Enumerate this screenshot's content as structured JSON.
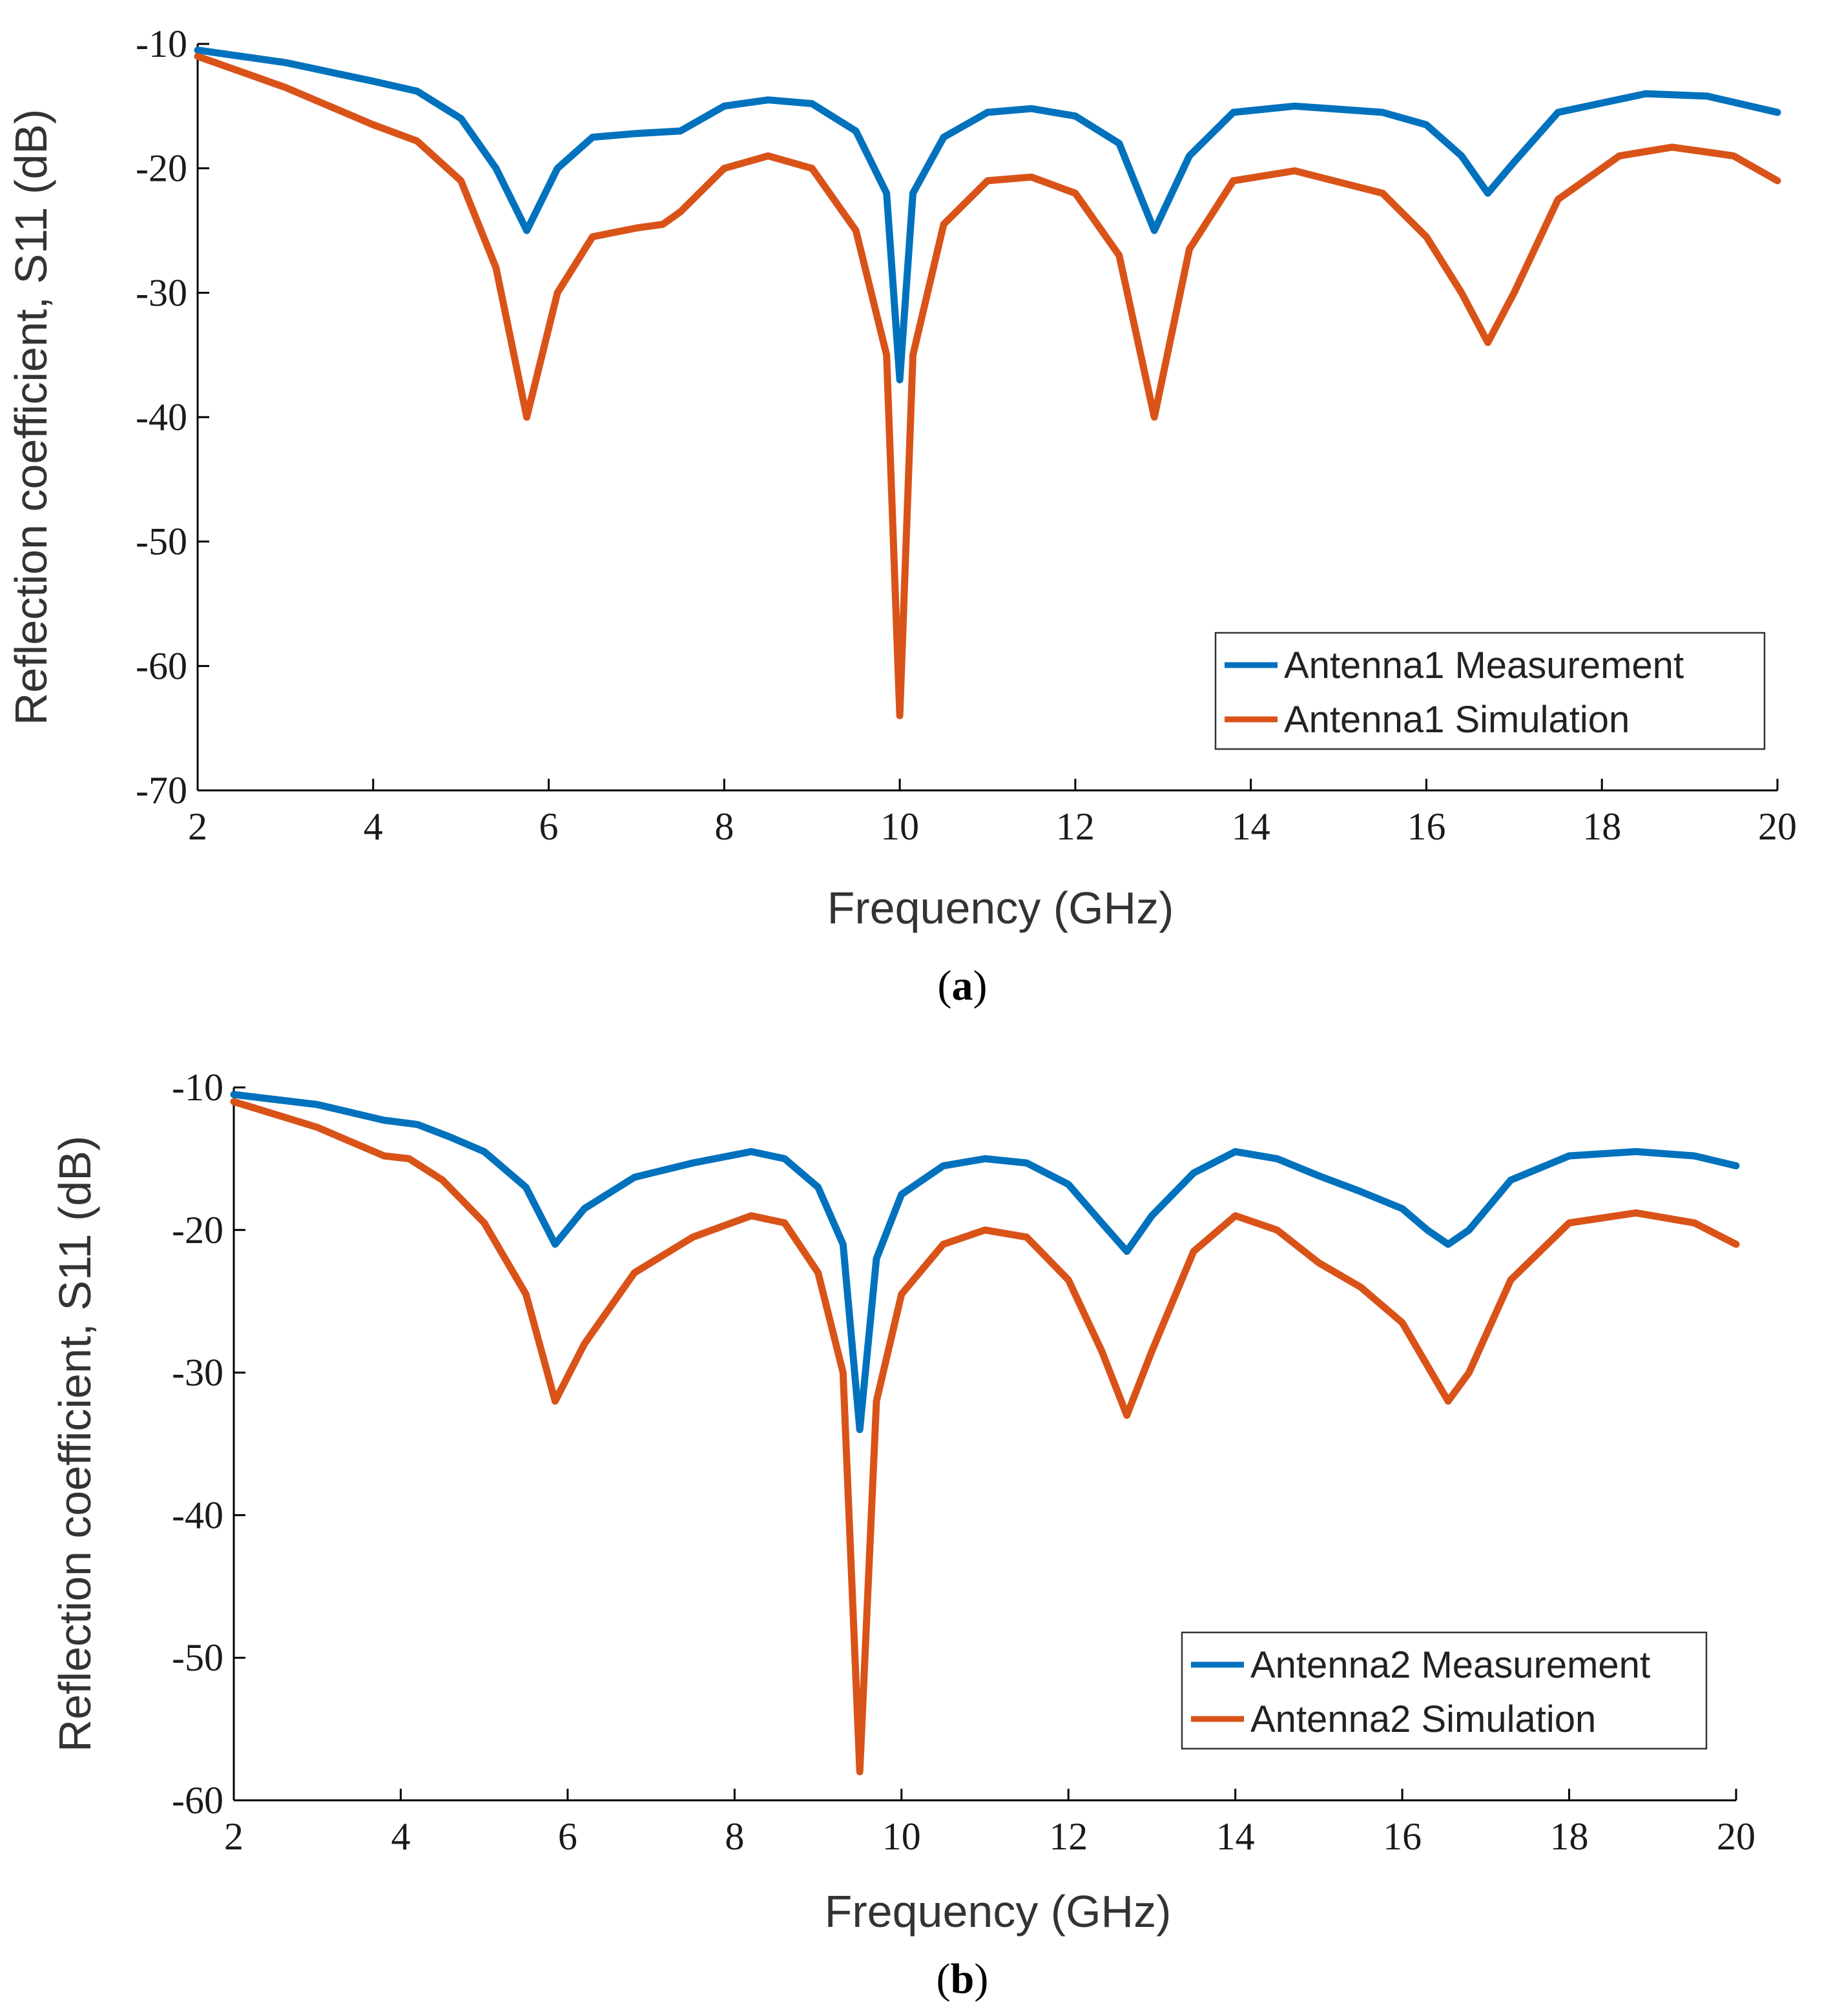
{
  "chart_data": [
    {
      "type": "line",
      "panel": "a",
      "caption": {
        "open": "(",
        "letter": "a",
        "close": ")"
      },
      "xlabel": "Frequency (GHz)",
      "ylabel": "Reflection coefficient, S11 (dB)",
      "xlim": [
        2,
        20
      ],
      "ylim": [
        -70,
        -10
      ],
      "xticks": [
        "2",
        "4",
        "6",
        "8",
        "10",
        "12",
        "14",
        "16",
        "18",
        "20"
      ],
      "xtick_values": [
        2,
        4,
        6,
        8,
        10,
        12,
        14,
        16,
        18,
        20
      ],
      "yticks": [
        "-10",
        "-20",
        "-30",
        "-40",
        "-50",
        "-60",
        "-70"
      ],
      "ytick_values": [
        -10,
        -20,
        -30,
        -40,
        -50,
        -60,
        -70
      ],
      "legend_position": "bottom-right",
      "series": [
        {
          "name": "Antenna1 Measurement",
          "color": "#0072BD",
          "points": [
            [
              2,
              -10.5
            ],
            [
              3,
              -11.5
            ],
            [
              4,
              -13.0
            ],
            [
              4.5,
              -13.8
            ],
            [
              5,
              -16.0
            ],
            [
              5.4,
              -20.0
            ],
            [
              5.75,
              -25.0
            ],
            [
              6.1,
              -20.0
            ],
            [
              6.5,
              -17.5
            ],
            [
              7.0,
              -17.2
            ],
            [
              7.5,
              -17.0
            ],
            [
              8,
              -15.0
            ],
            [
              8.5,
              -14.5
            ],
            [
              9,
              -14.8
            ],
            [
              9.5,
              -17.0
            ],
            [
              9.85,
              -22.0
            ],
            [
              10.0,
              -37.0
            ],
            [
              10.15,
              -22.0
            ],
            [
              10.5,
              -17.5
            ],
            [
              11,
              -15.5
            ],
            [
              11.5,
              -15.2
            ],
            [
              12,
              -15.8
            ],
            [
              12.5,
              -18.0
            ],
            [
              12.9,
              -25.0
            ],
            [
              13.3,
              -19.0
            ],
            [
              13.8,
              -15.5
            ],
            [
              14.5,
              -15.0
            ],
            [
              15.5,
              -15.5
            ],
            [
              16,
              -16.5
            ],
            [
              16.4,
              -19.0
            ],
            [
              16.7,
              -22.0
            ],
            [
              17.0,
              -19.5
            ],
            [
              17.5,
              -15.5
            ],
            [
              18.5,
              -14.0
            ],
            [
              19.2,
              -14.2
            ],
            [
              20,
              -15.5
            ]
          ]
        },
        {
          "name": "Antenna1 Simulation",
          "color": "#D95319",
          "points": [
            [
              2,
              -11.0
            ],
            [
              3,
              -13.5
            ],
            [
              4,
              -16.5
            ],
            [
              4.5,
              -17.8
            ],
            [
              5,
              -21.0
            ],
            [
              5.4,
              -28.0
            ],
            [
              5.75,
              -40.0
            ],
            [
              6.1,
              -30.0
            ],
            [
              6.5,
              -25.5
            ],
            [
              7.0,
              -24.8
            ],
            [
              7.3,
              -24.5
            ],
            [
              7.5,
              -23.5
            ],
            [
              8,
              -20.0
            ],
            [
              8.5,
              -19.0
            ],
            [
              9,
              -20.0
            ],
            [
              9.5,
              -25.0
            ],
            [
              9.85,
              -35.0
            ],
            [
              10.0,
              -64.0
            ],
            [
              10.15,
              -35.0
            ],
            [
              10.5,
              -24.5
            ],
            [
              11,
              -21.0
            ],
            [
              11.5,
              -20.7
            ],
            [
              12,
              -22.0
            ],
            [
              12.5,
              -27.0
            ],
            [
              12.9,
              -40.0
            ],
            [
              13.3,
              -26.5
            ],
            [
              13.8,
              -21.0
            ],
            [
              14.5,
              -20.2
            ],
            [
              15.5,
              -22.0
            ],
            [
              16,
              -25.5
            ],
            [
              16.4,
              -30.0
            ],
            [
              16.7,
              -34.0
            ],
            [
              17.0,
              -30.0
            ],
            [
              17.5,
              -22.5
            ],
            [
              18.2,
              -19.0
            ],
            [
              18.8,
              -18.3
            ],
            [
              19.5,
              -19.0
            ],
            [
              20,
              -21.0
            ]
          ]
        }
      ]
    },
    {
      "type": "line",
      "panel": "b",
      "caption": {
        "open": "(",
        "letter": "b",
        "close": ")"
      },
      "xlabel": "Frequency (GHz)",
      "ylabel": "Reflection coefficient, S11 (dB)",
      "xlim": [
        2,
        20
      ],
      "ylim": [
        -60,
        -10
      ],
      "xticks": [
        "2",
        "4",
        "6",
        "8",
        "10",
        "12",
        "14",
        "16",
        "18",
        "20"
      ],
      "xtick_values": [
        2,
        4,
        6,
        8,
        10,
        12,
        14,
        16,
        18,
        20
      ],
      "yticks": [
        "-10",
        "-20",
        "-30",
        "-40",
        "-50",
        "-60"
      ],
      "ytick_values": [
        -10,
        -20,
        -30,
        -40,
        -50,
        -60
      ],
      "legend_position": "bottom-right",
      "series": [
        {
          "name": "Antenna2 Measurement",
          "color": "#0072BD",
          "points": [
            [
              2,
              -10.5
            ],
            [
              3,
              -11.2
            ],
            [
              3.8,
              -12.3
            ],
            [
              4.2,
              -12.6
            ],
            [
              4.6,
              -13.5
            ],
            [
              5,
              -14.5
            ],
            [
              5.5,
              -17.0
            ],
            [
              5.85,
              -21.0
            ],
            [
              6.2,
              -18.5
            ],
            [
              6.8,
              -16.3
            ],
            [
              7.5,
              -15.3
            ],
            [
              8.2,
              -14.5
            ],
            [
              8.6,
              -15.0
            ],
            [
              9.0,
              -17.0
            ],
            [
              9.3,
              -21.0
            ],
            [
              9.5,
              -34.0
            ],
            [
              9.7,
              -22.0
            ],
            [
              10.0,
              -17.5
            ],
            [
              10.5,
              -15.5
            ],
            [
              11,
              -15.0
            ],
            [
              11.5,
              -15.3
            ],
            [
              12,
              -16.8
            ],
            [
              12.4,
              -19.5
            ],
            [
              12.7,
              -21.5
            ],
            [
              13.0,
              -19.0
            ],
            [
              13.5,
              -16.0
            ],
            [
              14.0,
              -14.5
            ],
            [
              14.5,
              -15.0
            ],
            [
              15,
              -16.2
            ],
            [
              15.5,
              -17.3
            ],
            [
              16,
              -18.5
            ],
            [
              16.3,
              -20.0
            ],
            [
              16.55,
              -21.0
            ],
            [
              16.8,
              -20.0
            ],
            [
              17.3,
              -16.5
            ],
            [
              18,
              -14.8
            ],
            [
              18.8,
              -14.5
            ],
            [
              19.5,
              -14.8
            ],
            [
              20,
              -15.5
            ]
          ]
        },
        {
          "name": "Antenna2 Simulation",
          "color": "#D95319",
          "points": [
            [
              2,
              -11.0
            ],
            [
              3,
              -12.8
            ],
            [
              3.8,
              -14.8
            ],
            [
              4.1,
              -15.0
            ],
            [
              4.5,
              -16.5
            ],
            [
              5,
              -19.5
            ],
            [
              5.5,
              -24.5
            ],
            [
              5.85,
              -32.0
            ],
            [
              6.2,
              -28.0
            ],
            [
              6.8,
              -23.0
            ],
            [
              7.5,
              -20.5
            ],
            [
              8.2,
              -19.0
            ],
            [
              8.6,
              -19.5
            ],
            [
              9.0,
              -23.0
            ],
            [
              9.3,
              -30.0
            ],
            [
              9.5,
              -58.0
            ],
            [
              9.7,
              -32.0
            ],
            [
              10.0,
              -24.5
            ],
            [
              10.5,
              -21.0
            ],
            [
              11,
              -20.0
            ],
            [
              11.5,
              -20.5
            ],
            [
              12,
              -23.5
            ],
            [
              12.4,
              -28.5
            ],
            [
              12.7,
              -33.0
            ],
            [
              13.0,
              -28.5
            ],
            [
              13.5,
              -21.5
            ],
            [
              14.0,
              -19.0
            ],
            [
              14.5,
              -20.0
            ],
            [
              15,
              -22.3
            ],
            [
              15.5,
              -24.0
            ],
            [
              16,
              -26.5
            ],
            [
              16.3,
              -29.5
            ],
            [
              16.55,
              -32.0
            ],
            [
              16.8,
              -30.0
            ],
            [
              17.3,
              -23.5
            ],
            [
              18,
              -19.5
            ],
            [
              18.8,
              -18.8
            ],
            [
              19.5,
              -19.5
            ],
            [
              20,
              -21.0
            ]
          ]
        }
      ]
    }
  ]
}
